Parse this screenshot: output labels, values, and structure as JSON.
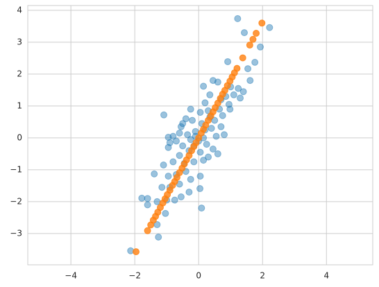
{
  "chart_data": {
    "type": "scatter",
    "xlim": [
      -5.35,
      5.45
    ],
    "ylim": [
      -3.98,
      4.15
    ],
    "xticks": [
      {
        "value": -4,
        "label": "−4"
      },
      {
        "value": -2,
        "label": "−2"
      },
      0,
      2,
      4
    ],
    "yticks": [
      {
        "value": -3,
        "label": "−3"
      },
      {
        "value": -2,
        "label": "−2"
      },
      {
        "value": -1,
        "label": "−1"
      },
      0,
      1,
      2,
      3,
      4
    ],
    "grid": true,
    "series": [
      {
        "color": "#1f77b4",
        "opacity": 0.45,
        "x": [
          1.22,
          1.43,
          2.22,
          1.93,
          0.91,
          1.76,
          1.54,
          1.61,
          1.24,
          1.4,
          1.0,
          0.45,
          0.6,
          0.15,
          0.35,
          0.95,
          0.98,
          0.75,
          0.65,
          0.5,
          0.3,
          0.05,
          -0.25,
          -0.4,
          -0.2,
          0.1,
          -0.55,
          -0.6,
          -0.35,
          -0.1,
          0.2,
          0.4,
          0.7,
          0.8,
          0.55,
          -1.09,
          -0.95,
          -0.9,
          -0.95,
          -0.7,
          -0.5,
          -0.25,
          0.0,
          0.25,
          0.45,
          0.6,
          0.3,
          0.05,
          -0.3,
          -0.6,
          -0.8,
          -1.1,
          -0.45,
          -0.15,
          0.15,
          -0.4,
          -0.7,
          -0.95,
          -1.39,
          -0.25,
          0.05,
          -0.6,
          -0.9,
          -1.15,
          0.04,
          -0.55,
          -0.75,
          -1.0,
          -1.6,
          -1.78,
          -1.6,
          -1.3,
          -0.3,
          0.09,
          -1.04,
          -1.3,
          -1.26,
          -2.13,
          1.3,
          1.1,
          0.85,
          0.2,
          -0.1,
          0.15,
          -0.15,
          0.35,
          0.7,
          -0.8,
          -0.5
        ],
        "y": [
          3.74,
          3.3,
          3.46,
          2.85,
          2.39,
          2.37,
          2.17,
          1.8,
          1.55,
          1.45,
          1.6,
          1.8,
          1.75,
          1.62,
          1.35,
          1.05,
          0.9,
          0.7,
          0.9,
          0.55,
          0.85,
          0.8,
          0.9,
          0.6,
          0.55,
          0.45,
          0.35,
          0.15,
          0.1,
          0.2,
          0.25,
          0.3,
          0.35,
          0.1,
          0.05,
          0.72,
          0.02,
          -0.15,
          -0.3,
          -0.1,
          -0.25,
          -0.05,
          -0.1,
          -0.2,
          -0.35,
          -0.5,
          -0.6,
          -0.45,
          -0.4,
          -0.55,
          -0.75,
          -0.85,
          -0.8,
          -0.75,
          -0.7,
          -1.05,
          -1.15,
          -1.2,
          -1.13,
          -1.3,
          -1.2,
          -1.45,
          -1.55,
          -1.55,
          -1.59,
          -1.85,
          -1.95,
          -1.95,
          -1.9,
          -1.89,
          -2.1,
          -2.0,
          -1.7,
          -2.2,
          -2.37,
          -2.72,
          -3.11,
          -3.54,
          1.25,
          1.35,
          1.3,
          1.1,
          0.05,
          0.0,
          -0.25,
          0.65,
          1.2,
          0.05,
          0.45
        ]
      },
      {
        "color": "#ff7f0e",
        "opacity": 0.8,
        "x": [
          -1.96,
          -1.6,
          -1.5,
          -1.42,
          -1.35,
          -1.28,
          -1.2,
          -1.12,
          -1.05,
          -0.98,
          -0.9,
          -0.82,
          -0.75,
          -0.68,
          -0.6,
          -0.52,
          -0.45,
          -0.38,
          -0.3,
          -0.22,
          -0.15,
          -0.08,
          0.0,
          0.08,
          0.15,
          0.22,
          0.3,
          0.38,
          0.45,
          0.52,
          0.6,
          0.68,
          0.75,
          0.82,
          0.9,
          0.98,
          1.05,
          1.12,
          1.2,
          1.38,
          1.6,
          1.7,
          1.8,
          1.98
        ],
        "y": [
          -3.57,
          -2.91,
          -2.73,
          -2.58,
          -2.46,
          -2.33,
          -2.18,
          -2.04,
          -1.91,
          -1.78,
          -1.64,
          -1.49,
          -1.37,
          -1.24,
          -1.09,
          -0.95,
          -0.82,
          -0.69,
          -0.55,
          -0.4,
          -0.27,
          -0.15,
          0,
          0.15,
          0.27,
          0.4,
          0.55,
          0.69,
          0.82,
          0.95,
          1.09,
          1.24,
          1.37,
          1.49,
          1.64,
          1.78,
          1.91,
          2.04,
          2.18,
          2.51,
          2.91,
          3.09,
          3.28,
          3.6
        ]
      }
    ]
  }
}
